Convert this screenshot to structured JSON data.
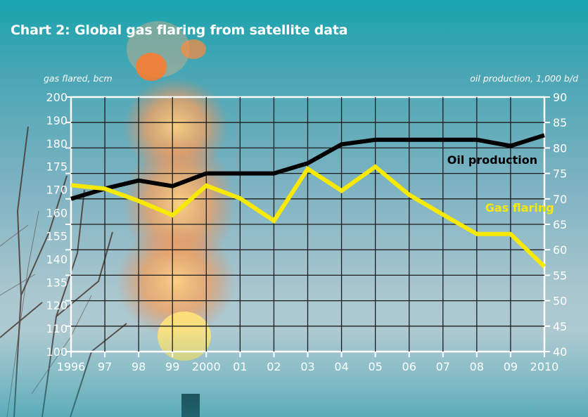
{
  "chart_data": {
    "type": "line",
    "title": "Chart 2: Global gas flaring from satellite data",
    "y_left_label": "gas flared, bcm",
    "y_right_label": "oil production, 1,000 b/d",
    "x_tick_labels": [
      "1996",
      "97",
      "98",
      "99",
      "2000",
      "01",
      "02",
      "03",
      "04",
      "05",
      "06",
      "07",
      "08",
      "09",
      "2010"
    ],
    "y_left_ticks": [
      "200",
      "190",
      "180",
      "175",
      "170",
      "160",
      "155",
      "140",
      "135",
      "120",
      "110",
      "100"
    ],
    "y_right_ticks": [
      "90",
      "85",
      "80",
      "75",
      "70",
      "65",
      "60",
      "55",
      "50",
      "45",
      "40"
    ],
    "y_right_range": [
      40,
      90
    ],
    "grid": true,
    "series": [
      {
        "name": "Oil production",
        "color": "#000000",
        "axis": "right",
        "values": [
          70.0,
          72.0,
          73.6,
          72.5,
          75.0,
          75.0,
          75.0,
          77.0,
          80.7,
          81.6,
          81.6,
          81.6,
          81.6,
          80.4,
          82.5
        ]
      },
      {
        "name": "Gas flaring",
        "color": "#f7ea00",
        "axis": "right",
        "values": [
          72.7,
          72.0,
          69.6,
          66.8,
          72.6,
          70.1,
          65.7,
          75.9,
          71.6,
          76.3,
          70.8,
          66.9,
          63.1,
          63.1,
          56.7
        ]
      }
    ]
  }
}
